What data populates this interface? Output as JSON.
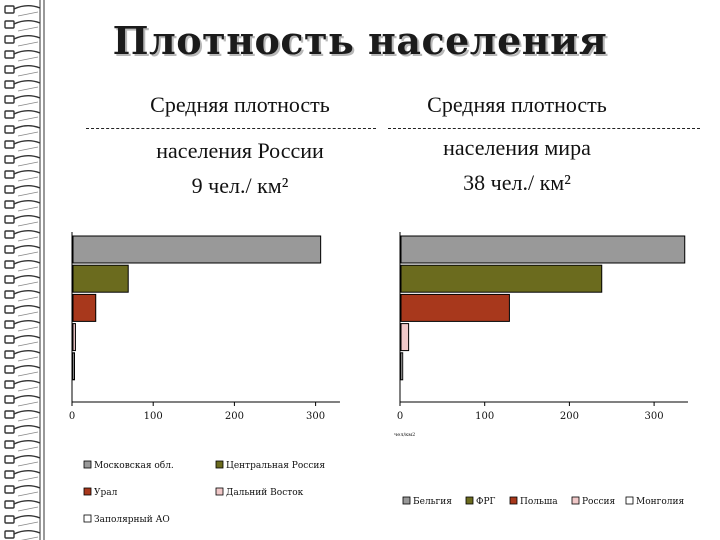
{
  "slide": {
    "title": "Плотность населения",
    "left_heading": {
      "line1": "Средняя плотность",
      "line2": "населения России",
      "line3": "9 чел./ км²"
    },
    "right_heading": {
      "line1": "Средняя плотность",
      "line2": "населения мира",
      "line3": "38 чел./ км²"
    }
  },
  "chart_data": [
    {
      "type": "bar",
      "orientation": "horizontal",
      "categories": [
        "Московская обл.",
        "Центральная Россия",
        "Урал",
        "Дальний Восток",
        "Заполярный АО"
      ],
      "values": [
        305,
        68,
        28,
        3,
        1
      ],
      "colors": [
        "#999999",
        "#6b6b1e",
        "#a8381c",
        "#f0c8c8",
        "#ffffff"
      ],
      "x_ticks": [
        0,
        100,
        200,
        300
      ],
      "xlim": [
        0,
        330
      ],
      "xlabel": "",
      "legend": "bottom"
    },
    {
      "type": "bar",
      "orientation": "horizontal",
      "categories": [
        "Бельгия",
        "ФРГ",
        "Польша",
        "Россия",
        "Монголия"
      ],
      "values": [
        335,
        237,
        128,
        9,
        2
      ],
      "colors": [
        "#999999",
        "#6b6b1e",
        "#a8381c",
        "#f0c8c8",
        "#ffffff"
      ],
      "x_ticks": [
        0,
        100,
        200,
        300
      ],
      "xlim": [
        0,
        340
      ],
      "xlabel": "чел/км2",
      "legend": "bottom"
    }
  ]
}
